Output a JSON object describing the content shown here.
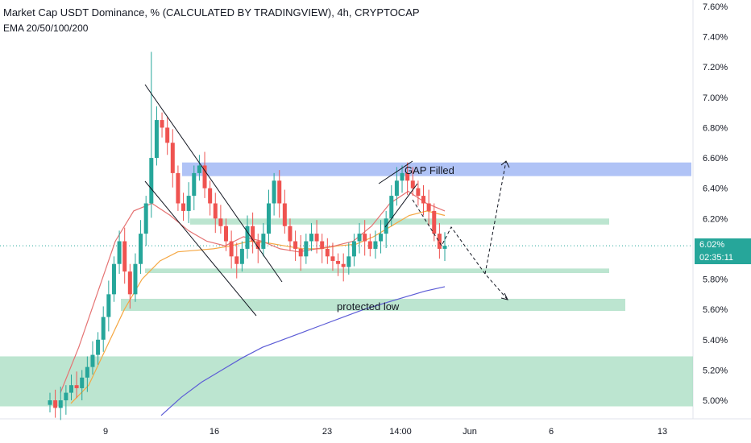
{
  "header": {
    "title": "Market Cap USDT Dominance, % (CALCULATED BY TRADINGVIEW), 4h, CRYPTOCAP",
    "indicator": "EMA 20/50/100/200"
  },
  "price_label": {
    "value": "6.02%",
    "countdown": "02:35:11"
  },
  "colors": {
    "up": "#26a69a",
    "down": "#ef5350",
    "ema20": "#e57373",
    "ema50": "#f5a742",
    "ema200": "#5c5cd6",
    "zone_green": "#8fd3b0",
    "zone_blue": "#8ea9f2"
  },
  "chart_data": {
    "type": "candlestick",
    "ylim": [
      4.92,
      7.66
    ],
    "y_ticks": [
      "7.60%",
      "7.40%",
      "7.20%",
      "7.00%",
      "6.80%",
      "6.60%",
      "6.40%",
      "6.20%",
      "6.00%",
      "5.80%",
      "5.60%",
      "5.40%",
      "5.20%",
      "5.00%"
    ],
    "x_ticks": [
      "9",
      "16",
      "23",
      "14:00",
      "Jun",
      "6",
      "13"
    ],
    "close_path": [
      5.0,
      4.95,
      5.0,
      5.05,
      5.1,
      5.08,
      5.15,
      5.22,
      5.3,
      5.4,
      5.55,
      5.7,
      5.9,
      6.05,
      5.85,
      5.7,
      5.9,
      6.1,
      6.3,
      6.6,
      6.85,
      6.8,
      6.7,
      6.5,
      6.3,
      6.25,
      6.35,
      6.5,
      6.55,
      6.4,
      6.3,
      6.2,
      6.15,
      6.05,
      5.95,
      5.9,
      6.0,
      6.15,
      6.05,
      6.0,
      6.1,
      6.3,
      6.45,
      6.3,
      6.15,
      6.05,
      6.0,
      5.95,
      6.05,
      6.1,
      6.05,
      6.0,
      5.95,
      5.92,
      5.9,
      5.88,
      5.95,
      6.05,
      6.1,
      6.05,
      6.0,
      6.05,
      6.1,
      6.2,
      6.35,
      6.45,
      6.5,
      6.45,
      6.4,
      6.35,
      6.3,
      6.25,
      6.1,
      6.0,
      6.02
    ],
    "spike_high": 7.3,
    "ema20": [
      5.05,
      5.35,
      5.7,
      6.05,
      6.25,
      6.3,
      6.22,
      6.12,
      6.05,
      6.02,
      6.08,
      6.05,
      6.0,
      5.98,
      6.0,
      6.02,
      6.05,
      6.15,
      6.3,
      6.38,
      6.3,
      6.25
    ],
    "ema50": [
      4.98,
      5.1,
      5.35,
      5.6,
      5.8,
      5.92,
      5.98,
      5.99,
      6.0,
      6.02,
      6.05,
      6.04,
      6.02,
      6.0,
      6.0,
      6.02,
      6.03,
      6.08,
      6.15,
      6.22,
      6.25,
      6.22
    ],
    "ema200": [
      4.9,
      5.02,
      5.12,
      5.2,
      5.28,
      5.35,
      5.4,
      5.45,
      5.5,
      5.55,
      5.6,
      5.64,
      5.68,
      5.72,
      5.75
    ],
    "zones": [
      {
        "name": "gap-zone",
        "y": [
          6.48,
          6.57
        ],
        "color": "blue"
      },
      {
        "name": "resistance-zone",
        "y": [
          6.16,
          6.2
        ],
        "color": "green"
      },
      {
        "name": "support-zone",
        "y": [
          5.84,
          5.87
        ],
        "color": "green"
      },
      {
        "name": "protected-low-zone",
        "y": [
          5.59,
          5.67
        ],
        "color": "green"
      },
      {
        "name": "demand-zone",
        "y": [
          4.96,
          5.29
        ],
        "color": "green"
      }
    ],
    "annotations": {
      "gap": "GAP Filled",
      "protected": "protected low"
    }
  }
}
